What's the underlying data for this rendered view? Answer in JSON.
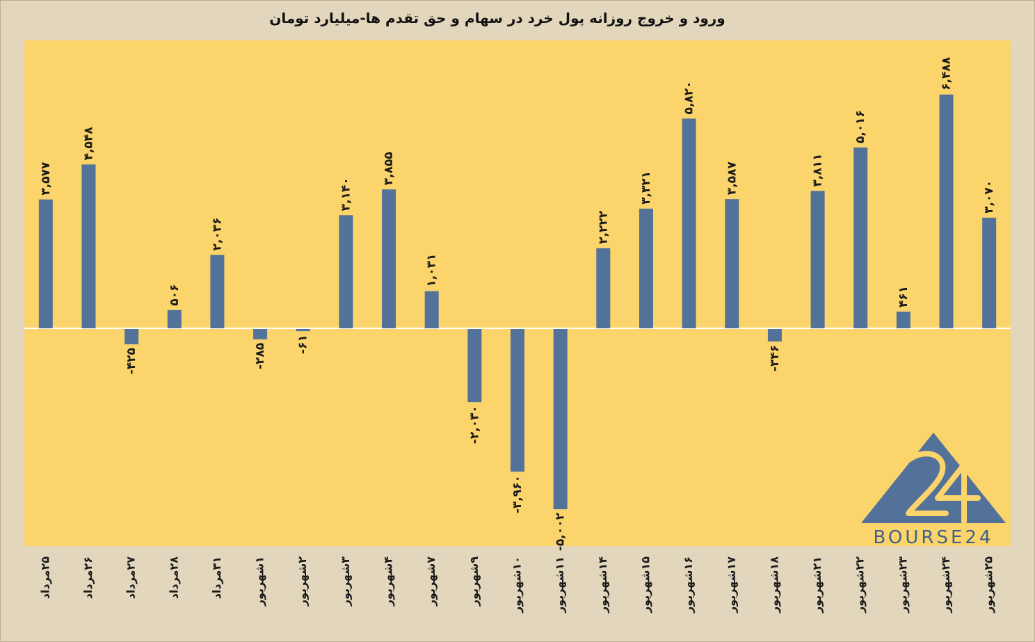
{
  "chart_data": {
    "type": "bar",
    "title": "ورود و خروج روزانه پول خرد در سهام و حق تقدم ها-میلیارد تومان",
    "categories": [
      "۲۵مرداد",
      "۲۶مرداد",
      "۲۷مرداد",
      "۲۸مرداد",
      "۳۱مرداد",
      "۱شهریور",
      "۲شهریور",
      "۳شهریور",
      "۴شهریور",
      "۷شهریور",
      "۹شهریور",
      "۱۰شهریور",
      "۱۱شهریور",
      "۱۴شهریور",
      "۱۵شهریور",
      "۱۶شهریور",
      "۱۷شهریور",
      "۱۸شهریور",
      "۲۱شهریور",
      "۲۲شهریور",
      "۲۳شهریور",
      "۲۴شهریور",
      "۲۵شهریور"
    ],
    "values": [
      3577,
      4548,
      -425,
      506,
      2036,
      -285,
      -61,
      3140,
      3855,
      1031,
      -2030,
      -3960,
      -5002,
      2222,
      3321,
      5820,
      3587,
      -346,
      3811,
      5016,
      461,
      6488,
      3070
    ],
    "data_labels": [
      "۳,۵۷۷",
      "۴,۵۴۸",
      "-۴۲۵",
      "۵۰۶",
      "۲,۰۳۶",
      "-۲۸۵",
      "-۶۱",
      "۳,۱۴۰",
      "۳,۸۵۵",
      "۱,۰۳۱",
      "-۲,۰۳۰",
      "-۳,۹۶۰",
      "-۵,۰۰۲",
      "۲,۲۲۲",
      "۳,۳۲۱",
      "۵,۸۲۰",
      "۳,۵۸۷",
      "-۳۴۶",
      "۳,۸۱۱",
      "۵,۰۱۶",
      "۴۶۱",
      "۶,۴۸۸",
      "۳,۰۷۰"
    ],
    "ylim": [
      -6000,
      8000
    ],
    "grid": false,
    "legend": "none",
    "colors": {
      "bar": "#52729a",
      "plot_background": "#fbd46b",
      "page_background": "#e2d7bd",
      "zero_line": "#ffffff"
    }
  },
  "watermark": {
    "logo_text": "BOURSE24",
    "logo_number": "24",
    "color": "#3f6189"
  }
}
